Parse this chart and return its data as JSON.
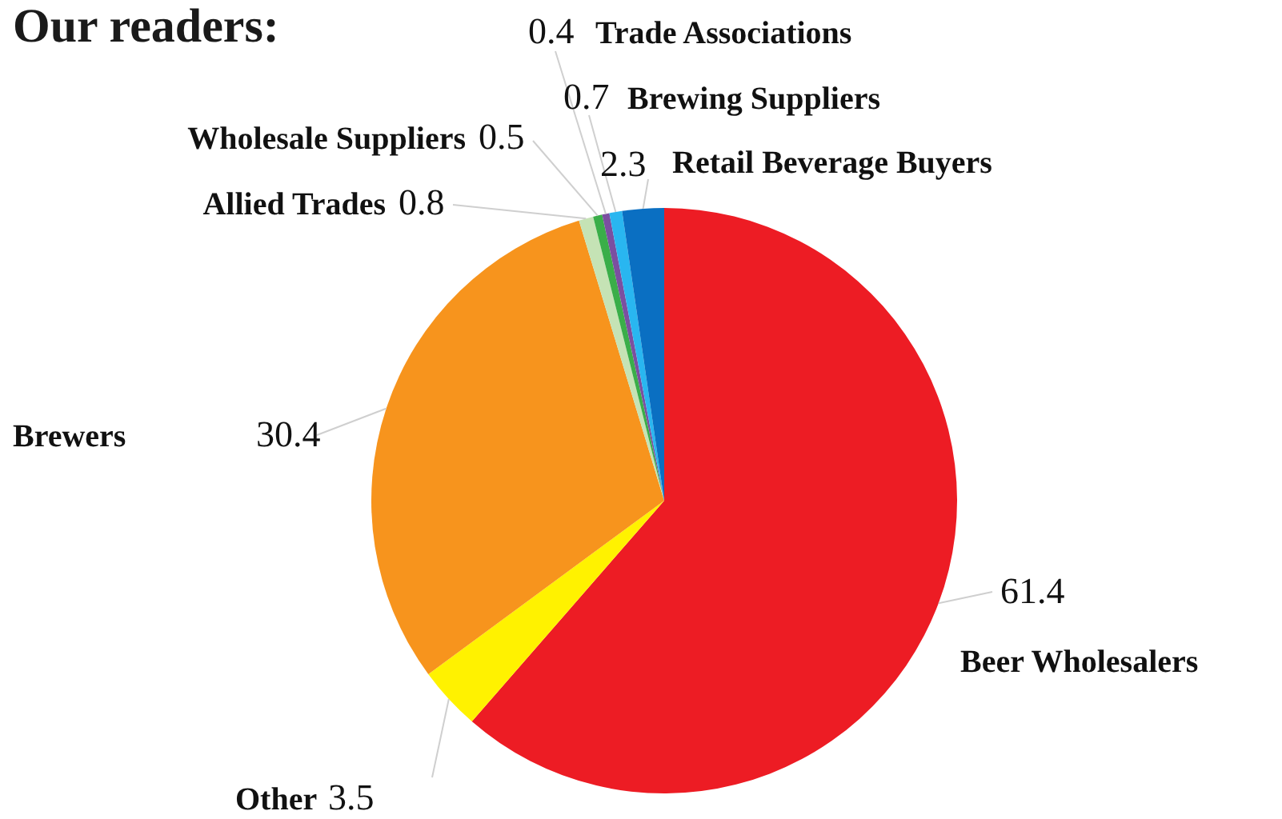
{
  "chart_data": {
    "type": "pie",
    "title": "Our readers:",
    "categories": [
      "Beer Wholesalers",
      "Other",
      "Brewers",
      "Allied Trades",
      "Wholesale Suppliers",
      "Trade Associations",
      "Brewing Suppliers",
      "Retail Beverage Buyers"
    ],
    "values": [
      61.4,
      3.5,
      30.4,
      0.8,
      0.5,
      0.4,
      0.7,
      2.3
    ],
    "colors": [
      "#ed1c24",
      "#fff200",
      "#f7941d",
      "#c5e3b5",
      "#3aae49",
      "#7b4fa0",
      "#29b6f0",
      "#0a6fc2"
    ],
    "data_labels": true
  }
}
